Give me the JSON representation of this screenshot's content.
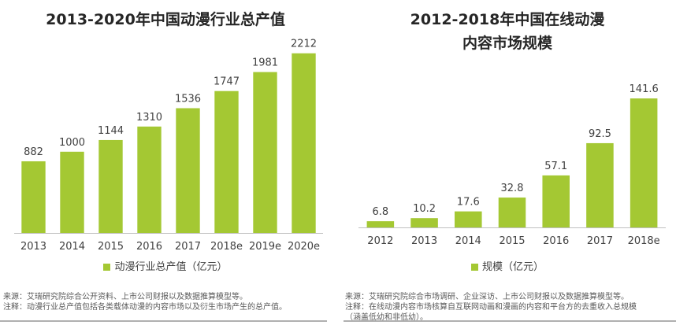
{
  "colors": {
    "bar": "#a4c833",
    "axis": "#bfbfbf",
    "text": "#404040"
  },
  "chart_data": [
    {
      "type": "bar",
      "title": "2013-2020年中国动漫行业总产值",
      "categories": [
        "2013",
        "2014",
        "2015",
        "2016",
        "2017",
        "2018e",
        "2019e",
        "2020e"
      ],
      "series": [
        {
          "name": "动漫行业总产值（亿元）",
          "values": [
            882,
            1000,
            1144,
            1310,
            1536,
            1747,
            1981,
            2212
          ]
        }
      ],
      "ylim": [
        0,
        2500
      ],
      "xlabel": "",
      "ylabel": "",
      "grid": false,
      "legend": "bottom"
    },
    {
      "type": "bar",
      "title_lines": [
        "2012-2018年中国在线动漫",
        "内容市场规模"
      ],
      "categories": [
        "2012",
        "2013",
        "2014",
        "2015",
        "2016",
        "2017",
        "2018e"
      ],
      "series": [
        {
          "name": "规模（亿元）",
          "values": [
            6.8,
            10.2,
            17.6,
            32.8,
            57.1,
            92.5,
            141.6
          ]
        }
      ],
      "ylim": [
        0,
        165
      ],
      "xlabel": "",
      "ylabel": "",
      "grid": false,
      "legend": "bottom"
    }
  ],
  "left": {
    "notes": [
      "来源：艾瑞研究院综合公开资料、上市公司财报以及数据推算模型等。",
      "注释：动漫行业总产值包括各类载体动漫的内容市场以及衍生市场产生的总产值。"
    ]
  },
  "right": {
    "notes": [
      "来源：艾瑞研究院综合市场调研、企业深访、上市公司财报以及数据推算模型等。",
      "注释：在线动漫内容市场核算自互联网动画和漫画的内容和平台方的去重收入总规模",
      "（涵盖低幼和非低幼）。"
    ]
  }
}
